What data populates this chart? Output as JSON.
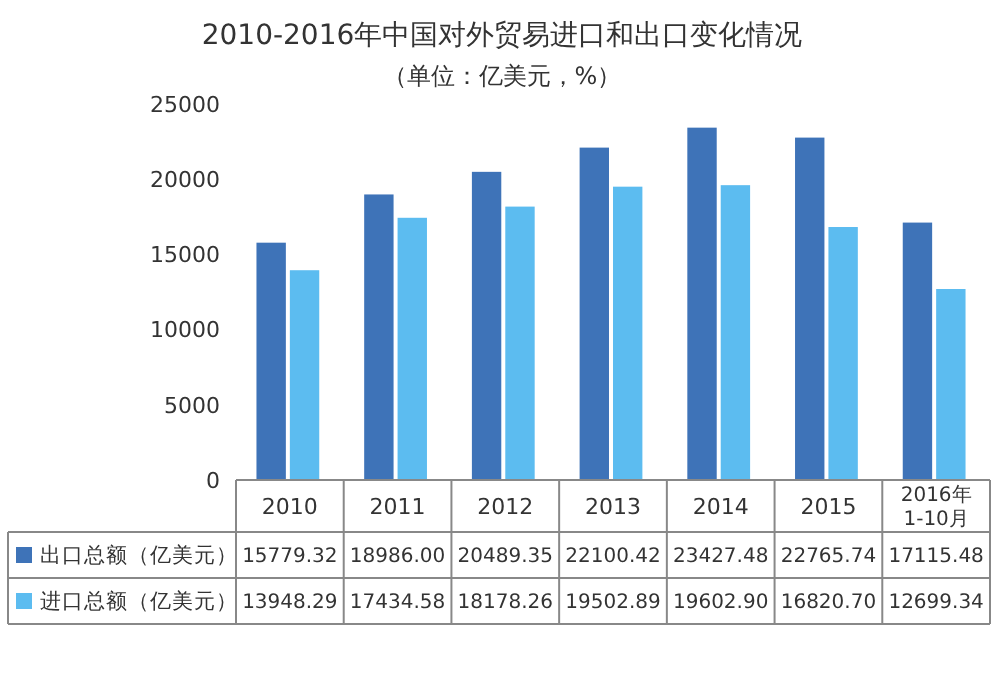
{
  "chart_data": {
    "type": "bar",
    "title": "2010-2016年中国对外贸易进口和出口变化情况",
    "subtitle": "（单位：亿美元，%）",
    "categories": [
      "2010",
      "2011",
      "2012",
      "2013",
      "2014",
      "2015",
      "2016年\n1-10月"
    ],
    "series": [
      {
        "name": "出口总额（亿美元）",
        "color": "#3e73b8",
        "values": [
          15779.32,
          18986.0,
          20489.35,
          22100.42,
          23427.48,
          22765.74,
          17115.48
        ],
        "value_labels": [
          "15779.32",
          "18986.00",
          "20489.35",
          "22100.42",
          "23427.48",
          "22765.74",
          "17115.48"
        ]
      },
      {
        "name": "进口总额（亿美元）",
        "color": "#5cbcf0",
        "values": [
          13948.29,
          17434.58,
          18178.26,
          19502.89,
          19602.9,
          16820.7,
          12699.34
        ],
        "value_labels": [
          "13948.29",
          "17434.58",
          "18178.26",
          "19502.89",
          "19602.90",
          "16820.70",
          "12699.34"
        ]
      }
    ],
    "ylim": [
      0,
      25000
    ],
    "yticks": [
      0,
      5000,
      10000,
      15000,
      20000,
      25000
    ],
    "grid": false,
    "legend": "bottom left"
  }
}
